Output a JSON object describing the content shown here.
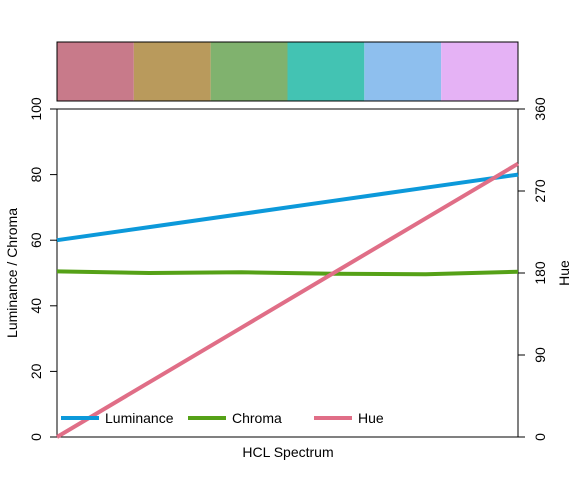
{
  "chart_data": {
    "type": "line",
    "xlabel": "HCL Spectrum",
    "ylabel_left": "Luminance / Chroma",
    "ylabel_right": "Hue",
    "ylim_left": [
      0,
      100
    ],
    "ylim_right": [
      0,
      360
    ],
    "yticks_left": [
      "0",
      "20",
      "40",
      "60",
      "80",
      "100"
    ],
    "yticks_right": [
      "0",
      "90",
      "180",
      "270",
      "360"
    ],
    "swatches": [
      "#C87A8A",
      "#B99A5C",
      "#80B26E",
      "#43C3B3",
      "#8EBFEE",
      "#E5B2F5"
    ],
    "x": [
      0,
      0.2,
      0.4,
      0.6,
      0.8,
      1.0
    ],
    "series": [
      {
        "name": "Luminance",
        "axis": "left",
        "color": "#0C99DA",
        "values": [
          60,
          64,
          68,
          72,
          76,
          80
        ]
      },
      {
        "name": "Chroma",
        "axis": "left",
        "color": "#55A117",
        "values": [
          50.5,
          50.0,
          50.2,
          49.8,
          49.6,
          50.4
        ]
      },
      {
        "name": "Hue",
        "axis": "right",
        "color": "#E06E87",
        "values": [
          0,
          60,
          120,
          180,
          240,
          300
        ]
      }
    ],
    "legend_position": "bottom-left"
  }
}
